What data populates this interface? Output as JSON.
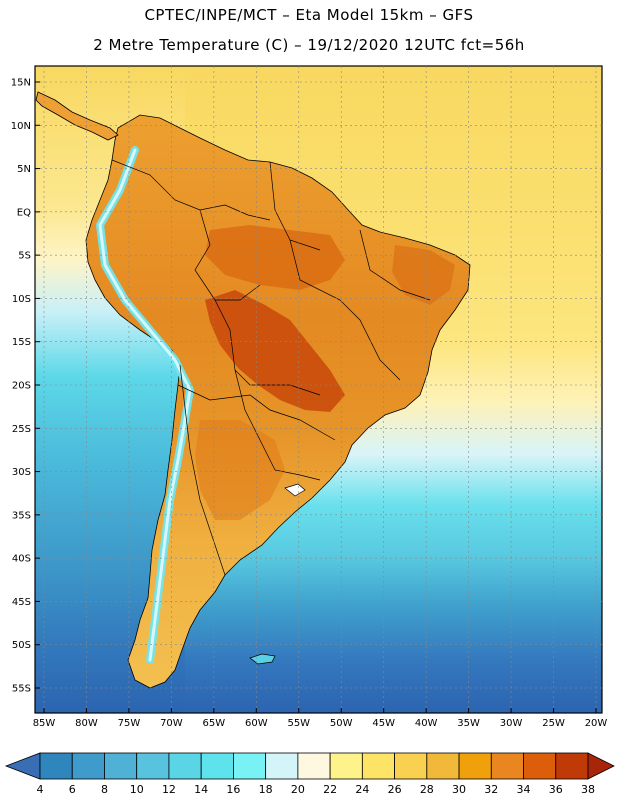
{
  "title_line1": "CPTEC/INPE/MCT  –   Eta Model 15km  –  GFS",
  "title_line2": "2 Metre Temperature (C) – 19/12/2020 12UTC fct=56h",
  "lat_labels": [
    "15N",
    "10N",
    "5N",
    "EQ",
    "5S",
    "10S",
    "15S",
    "20S",
    "25S",
    "30S",
    "35S",
    "40S",
    "45S",
    "50S",
    "55S"
  ],
  "lon_labels": [
    "85W",
    "80W",
    "75W",
    "70W",
    "65W",
    "60W",
    "55W",
    "50W",
    "45W",
    "40W",
    "35W",
    "30W",
    "25W",
    "20W"
  ],
  "colorbar": {
    "labels": [
      "4",
      "6",
      "8",
      "10",
      "12",
      "14",
      "16",
      "18",
      "20",
      "22",
      "24",
      "26",
      "28",
      "30",
      "32",
      "34",
      "36",
      "38"
    ],
    "colors": [
      "#3a6eb4",
      "#2f86bd",
      "#3e9bcb",
      "#4fb1d6",
      "#58c3de",
      "#5ad5e6",
      "#5ee3ec",
      "#78f2f4",
      "#d3f5fa",
      "#fef8e0",
      "#fef28a",
      "#fde466",
      "#fad050",
      "#f2b83a",
      "#f0a00a",
      "#ea8620",
      "#dc5e0a",
      "#c03a08",
      "#a8250a"
    ]
  }
}
